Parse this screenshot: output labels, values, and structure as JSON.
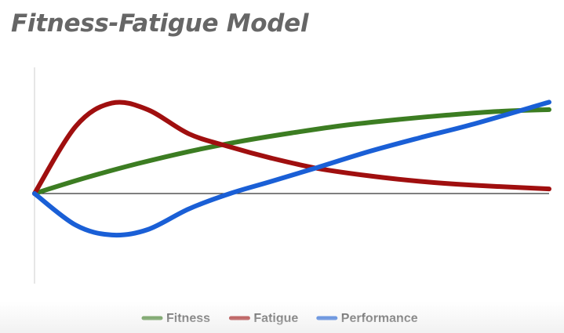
{
  "chart_data": {
    "type": "line",
    "title": "Fitness-Fatigue Model",
    "xlabel": "",
    "ylabel": "",
    "xlim": [
      0,
      100
    ],
    "ylim": [
      -1,
      1
    ],
    "grid": false,
    "legend": "bottom",
    "series": [
      {
        "name": "Fitness",
        "color": "#3c7d22",
        "x": [
          0,
          10,
          20,
          30,
          40,
          50,
          60,
          70,
          80,
          90,
          100
        ],
        "y": [
          0,
          0.17,
          0.32,
          0.45,
          0.56,
          0.65,
          0.73,
          0.79,
          0.84,
          0.88,
          0.9
        ]
      },
      {
        "name": "Fatigue",
        "color": "#a00f0f",
        "x": [
          0,
          8,
          15,
          22,
          30,
          38,
          46,
          55,
          65,
          75,
          85,
          100
        ],
        "y": [
          0,
          0.72,
          0.97,
          0.9,
          0.64,
          0.5,
          0.38,
          0.27,
          0.19,
          0.13,
          0.09,
          0.05
        ]
      },
      {
        "name": "Performance",
        "color": "#1a5fd6",
        "x": [
          0,
          8,
          15,
          22,
          30,
          38,
          46,
          55,
          65,
          75,
          85,
          100
        ],
        "y": [
          0,
          -0.35,
          -0.46,
          -0.4,
          -0.17,
          0.0,
          0.13,
          0.28,
          0.45,
          0.6,
          0.74,
          0.98
        ]
      }
    ]
  }
}
